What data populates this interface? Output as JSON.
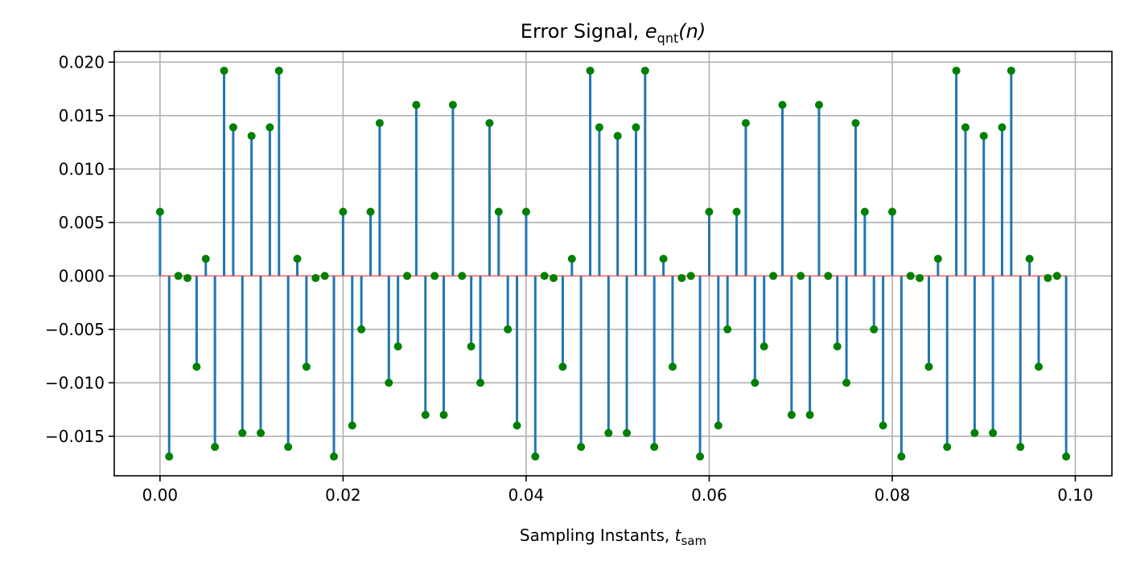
{
  "chart_data": {
    "type": "stem",
    "title": "Error Signal, ",
    "title_math": "e",
    "title_math_sub": "qnt",
    "title_math_tail": "(n)",
    "xlabel": "Sampling Instants, ",
    "xlabel_math": "t",
    "xlabel_math_sub": "sam",
    "xlim": [
      -0.005,
      0.104
    ],
    "ylim": [
      -0.0187,
      0.021
    ],
    "xticks": [
      0.0,
      0.02,
      0.04,
      0.06,
      0.08,
      0.1
    ],
    "xtick_labels": [
      "0.00",
      "0.02",
      "0.04",
      "0.06",
      "0.08",
      "0.10"
    ],
    "yticks": [
      0.02,
      0.015,
      0.01,
      0.005,
      0.0,
      -0.005,
      -0.01,
      -0.015
    ],
    "ytick_labels": [
      "0.020",
      "0.015",
      "0.010",
      "0.005",
      "0.000",
      "−0.005",
      "−0.010",
      "−0.015"
    ],
    "grid": true,
    "stem_color": "#1f77b4",
    "marker_color": "#008000",
    "baseline_color": "#ff7f7f",
    "x_step": 0.001,
    "values": [
      0.006,
      -0.0169,
      0.0,
      -0.0002,
      -0.0085,
      0.0016,
      -0.016,
      0.0192,
      0.0139,
      -0.0147,
      0.0131,
      -0.0147,
      0.0139,
      0.0192,
      -0.016,
      0.0016,
      -0.0085,
      -0.0002,
      0.0,
      -0.0169,
      0.006,
      -0.014,
      -0.005,
      0.006,
      0.0143,
      -0.01,
      -0.0066,
      0.0,
      0.016,
      -0.013,
      0.0,
      -0.013,
      0.016,
      0.0,
      -0.0066,
      -0.01,
      0.0143,
      0.006,
      -0.005,
      -0.014,
      0.006,
      -0.0169,
      0.0,
      -0.0002,
      -0.0085,
      0.0016,
      -0.016,
      0.0192,
      0.0139,
      -0.0147,
      0.0131,
      -0.0147,
      0.0139,
      0.0192,
      -0.016,
      0.0016,
      -0.0085,
      -0.0002,
      0.0,
      -0.0169,
      0.006,
      -0.014,
      -0.005,
      0.006,
      0.0143,
      -0.01,
      -0.0066,
      0.0,
      0.016,
      -0.013,
      0.0,
      -0.013,
      0.016,
      0.0,
      -0.0066,
      -0.01,
      0.0143,
      0.006,
      -0.005,
      -0.014,
      0.006,
      -0.0169,
      0.0,
      -0.0002,
      -0.0085,
      0.0016,
      -0.016,
      0.0192,
      0.0139,
      -0.0147,
      0.0131,
      -0.0147,
      0.0139,
      0.0192,
      -0.016,
      0.0016,
      -0.0085,
      -0.0002,
      0.0,
      -0.0169
    ]
  }
}
